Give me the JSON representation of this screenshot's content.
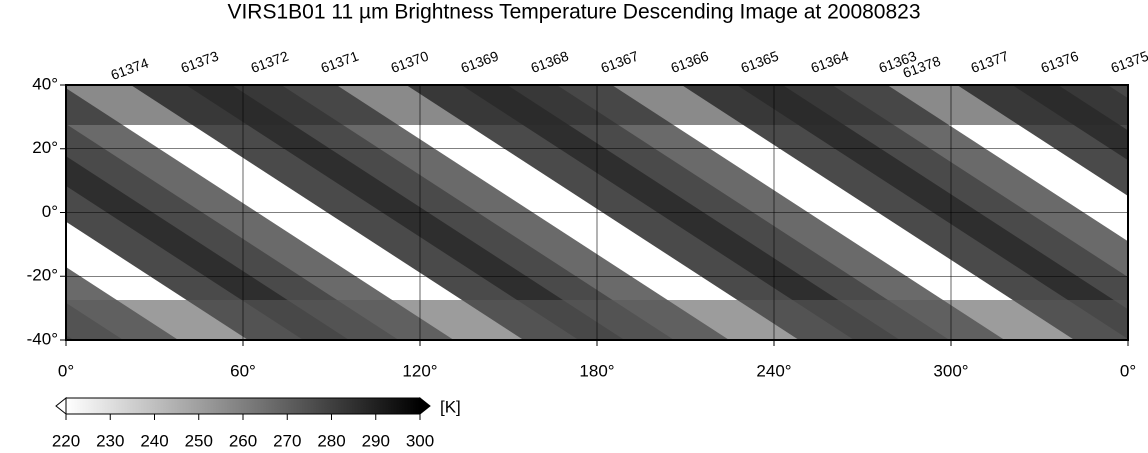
{
  "title": "VIRS1B01 11 µm Brightness Temperature Descending Image at 20080823",
  "orbit_numbers": [
    "61374",
    "61373",
    "61372",
    "61371",
    "61370",
    "61369",
    "61368",
    "61367",
    "61366",
    "61365",
    "61364",
    "61363",
    "61378",
    "61377",
    "61376",
    "61375"
  ],
  "map": {
    "lat_range": [
      -40,
      40
    ],
    "lon_range": [
      0,
      360
    ],
    "lat_ticks": [
      {
        "value": 40,
        "label": "40°"
      },
      {
        "value": 20,
        "label": "20°"
      },
      {
        "value": 0,
        "label": "0°"
      },
      {
        "value": -20,
        "label": "-20°"
      },
      {
        "value": -40,
        "label": "-40°"
      }
    ],
    "lon_ticks": [
      {
        "value": 0,
        "label": "0°"
      },
      {
        "value": 60,
        "label": "60°"
      },
      {
        "value": 120,
        "label": "120°"
      },
      {
        "value": 180,
        "label": "180°"
      },
      {
        "value": 240,
        "label": "240°"
      },
      {
        "value": 300,
        "label": "300°"
      },
      {
        "value": 360,
        "label": "0°"
      }
    ]
  },
  "colorbar": {
    "range": [
      220,
      300
    ],
    "ticks": [
      220,
      230,
      240,
      250,
      260,
      270,
      280,
      290,
      300
    ],
    "unit": "[K]"
  }
}
